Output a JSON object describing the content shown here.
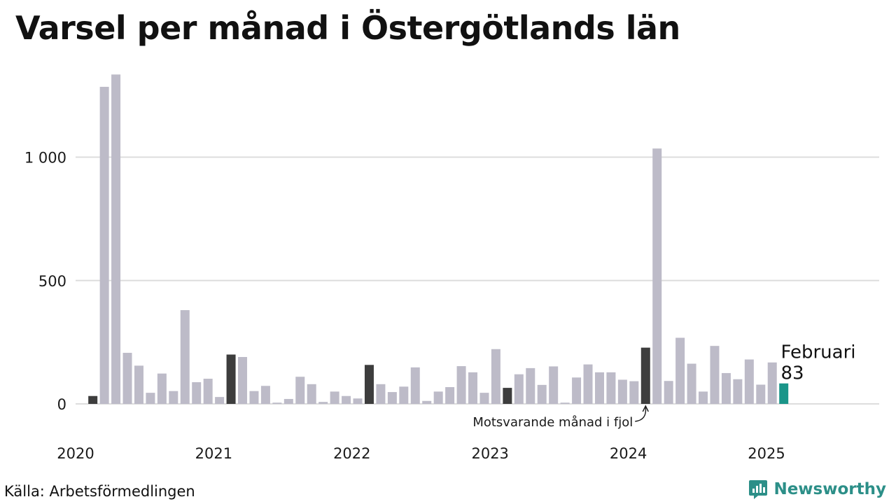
{
  "chart_data": {
    "type": "bar",
    "title": "Varsel per månad i Östergötlands län",
    "xlabel": "",
    "ylabel": "",
    "ylim": [
      0,
      1350
    ],
    "grid": true,
    "y_ticks": [
      {
        "value": 0,
        "label": "0"
      },
      {
        "value": 500,
        "label": "500"
      },
      {
        "value": 1000,
        "label": "1 000"
      }
    ],
    "x_ticks": [
      {
        "value": "2020-01",
        "label": "2020"
      },
      {
        "value": "2021-01",
        "label": "2021"
      },
      {
        "value": "2022-01",
        "label": "2022"
      },
      {
        "value": "2023-01",
        "label": "2023"
      },
      {
        "value": "2024-01",
        "label": "2024"
      },
      {
        "value": "2025-01",
        "label": "2025"
      }
    ],
    "x_range": [
      "2020-01",
      "2025-12"
    ],
    "categories": [
      "2020-02",
      "2020-03",
      "2020-04",
      "2020-05",
      "2020-06",
      "2020-07",
      "2020-08",
      "2020-09",
      "2020-10",
      "2020-11",
      "2020-12",
      "2021-01",
      "2021-02",
      "2021-03",
      "2021-04",
      "2021-05",
      "2021-06",
      "2021-07",
      "2021-08",
      "2021-09",
      "2021-10",
      "2021-11",
      "2021-12",
      "2022-01",
      "2022-02",
      "2022-03",
      "2022-04",
      "2022-05",
      "2022-06",
      "2022-07",
      "2022-08",
      "2022-09",
      "2022-10",
      "2022-11",
      "2022-12",
      "2023-01",
      "2023-02",
      "2023-03",
      "2023-04",
      "2023-05",
      "2023-06",
      "2023-07",
      "2023-08",
      "2023-09",
      "2023-10",
      "2023-11",
      "2023-12",
      "2024-01",
      "2024-02",
      "2024-03",
      "2024-04",
      "2024-05",
      "2024-06",
      "2024-07",
      "2024-08",
      "2024-09",
      "2024-10",
      "2024-11",
      "2024-12",
      "2025-01",
      "2025-02"
    ],
    "values": [
      32,
      1285,
      1335,
      207,
      155,
      45,
      123,
      52,
      380,
      88,
      102,
      28,
      200,
      190,
      52,
      73,
      5,
      20,
      110,
      80,
      8,
      50,
      32,
      22,
      158,
      80,
      48,
      70,
      148,
      12,
      50,
      68,
      153,
      128,
      45,
      222,
      65,
      120,
      145,
      77,
      152,
      5,
      107,
      160,
      128,
      128,
      98,
      92,
      228,
      1035,
      93,
      268,
      163,
      50,
      235,
      125,
      100,
      180,
      78,
      168,
      83
    ],
    "highlight_months": [
      "2020-02",
      "2021-02",
      "2022-02",
      "2023-02",
      "2024-02"
    ],
    "latest": {
      "category": "2025-02",
      "month_label": "Februari",
      "value_label": "83"
    },
    "annotation": {
      "text": "Motsvarande månad i fjol",
      "target": "2024-02"
    },
    "colors": {
      "default": "#bdbbc8",
      "same_month": "#3d3d3d",
      "latest": "#1a9589",
      "grid": "#dddddd"
    }
  },
  "footer": {
    "source": "Källa: Arbetsförmedlingen",
    "brand": "Newsworthy",
    "brand_icon": "bar-chart-speech-bubble-icon"
  }
}
